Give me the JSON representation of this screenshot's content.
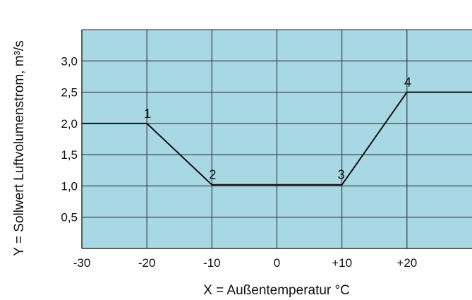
{
  "chart_data": {
    "type": "line",
    "xlabel": "X = Außentemperatur °C",
    "ylabel": "Y = Sollwert Luftvolumenstrom, m³/s",
    "xlim": [
      -30,
      30
    ],
    "ylim": [
      0,
      3.5
    ],
    "x_ticks": [
      -30,
      -20,
      -10,
      0,
      10,
      20
    ],
    "x_tick_labels": [
      "-30",
      "-20",
      "-10",
      "0",
      "+10",
      "+20"
    ],
    "y_ticks": [
      0.5,
      1.0,
      1.5,
      2.0,
      2.5,
      3.0
    ],
    "y_tick_labels": [
      "0,5",
      "1,0",
      "1,5",
      "2,0",
      "2,5",
      "3,0"
    ],
    "grid": true,
    "background_color": "#a8d8e4",
    "line_color": "#111111",
    "series": [
      {
        "x": [
          -30,
          -20,
          -10,
          10,
          20,
          30
        ],
        "y": [
          2.0,
          2.0,
          1.02,
          1.02,
          2.5,
          2.5
        ]
      }
    ],
    "point_labels": [
      {
        "label": "1",
        "x": -20,
        "y": 2.0
      },
      {
        "label": "2",
        "x": -10,
        "y": 1.02
      },
      {
        "label": "3",
        "x": 10,
        "y": 1.02
      },
      {
        "label": "4",
        "x": 20,
        "y": 2.5
      }
    ]
  }
}
